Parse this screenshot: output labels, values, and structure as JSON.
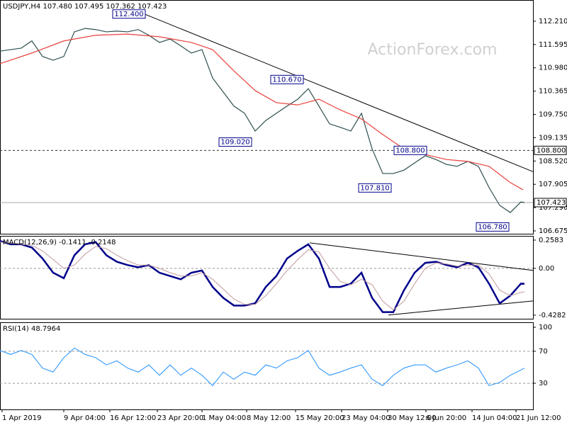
{
  "watermark": "ActionForex.com",
  "chart_data": [
    {
      "type": "line",
      "title": "USDJPY,H4  107.480 107.495 107.362 107.423",
      "x": [
        0,
        3,
        6,
        9,
        12,
        15,
        18,
        21,
        24,
        27,
        30,
        33,
        36,
        39,
        42,
        45,
        48,
        51,
        54,
        57,
        60,
        63,
        66,
        69,
        72,
        75,
        78,
        81,
        84,
        87,
        90,
        93,
        96,
        99,
        102,
        105,
        108,
        111,
        114,
        117,
        120,
        123,
        126,
        129,
        132,
        135,
        138,
        141,
        144,
        147,
        148
      ],
      "series": [
        {
          "name": "USDJPY",
          "color": "#2f4f4f",
          "values": [
            111.42,
            111.46,
            111.5,
            111.69,
            111.28,
            111.18,
            111.28,
            111.93,
            112.02,
            111.99,
            111.93,
            111.95,
            111.93,
            111.99,
            111.84,
            111.65,
            111.74,
            111.56,
            111.37,
            111.46,
            110.71,
            110.34,
            109.97,
            109.78,
            109.31,
            109.59,
            109.78,
            109.97,
            110.15,
            110.43,
            109.97,
            109.5,
            109.41,
            109.31,
            109.78,
            108.84,
            108.19,
            108.19,
            108.28,
            108.47,
            108.66,
            108.56,
            108.43,
            108.38,
            108.51,
            108.38,
            107.82,
            107.35,
            107.16,
            107.44,
            107.423
          ]
        },
        {
          "name": "MA",
          "color": "#e8413c",
          "x": [
            0,
            9,
            18,
            27,
            36,
            45,
            54,
            60,
            66,
            72,
            78,
            84,
            90,
            96,
            102,
            108,
            114,
            120,
            126,
            132,
            138,
            144,
            147.6
          ],
          "values": [
            111.09,
            111.37,
            111.69,
            111.84,
            111.87,
            111.8,
            111.65,
            111.46,
            110.9,
            110.38,
            110.06,
            110.0,
            110.15,
            109.87,
            109.63,
            109.22,
            108.84,
            108.69,
            108.56,
            108.51,
            108.38,
            107.95,
            107.76
          ]
        }
      ],
      "trendlines": [
        {
          "x": [
            41,
            150.4
          ],
          "y": [
            112.39,
            108.24
          ]
        }
      ],
      "annotations": [
        {
          "x": 41,
          "value": 112.4,
          "label": "112.400"
        },
        {
          "x": 85.6,
          "value": 110.67,
          "label": "110.670"
        },
        {
          "x": 71,
          "value": 109.02,
          "label": "109.020"
        },
        {
          "x": 120.4,
          "value": 108.8,
          "label": "108.800"
        },
        {
          "x": 110.4,
          "value": 107.81,
          "label": "107.810"
        },
        {
          "x": 143.6,
          "value": 106.78,
          "label": "106.780"
        }
      ],
      "hlines": [
        {
          "value": 108.8,
          "label": "108.800",
          "dashed": true
        },
        {
          "value": 107.423,
          "label": "107.423",
          "dashed": false
        }
      ],
      "xlim": [
        0,
        150.4
      ],
      "ylim": [
        106.6,
        112.77
      ],
      "yticks": [
        {
          "value": 112.21,
          "label": "112.210"
        },
        111.595,
        {
          "value": 110.98,
          "label": "110.980"
        },
        110.365,
        {
          "value": 109.75,
          "label": "109.750"
        },
        109.135,
        {
          "value": 108.52,
          "label": "108.520"
        },
        107.905,
        {
          "value": 107.29,
          "label": "107.290"
        },
        106.675
      ]
    },
    {
      "type": "line",
      "title": "MACD(12,26,9) -0.1411 -0.2148",
      "x": [
        0,
        3,
        6,
        9,
        12,
        15,
        18,
        21,
        24,
        27,
        30,
        33,
        36,
        39,
        42,
        45,
        48,
        51,
        54,
        57,
        60,
        63,
        66,
        69,
        72,
        75,
        78,
        81,
        84,
        87,
        90,
        93,
        96,
        99,
        102,
        105,
        108,
        111,
        114,
        117,
        120,
        123,
        126,
        129,
        132,
        135,
        138,
        141,
        144,
        147,
        148
      ],
      "series": [
        {
          "name": "MACD",
          "color": "#00008b",
          "width": 2.5,
          "values": [
            0.25,
            0.22,
            0.22,
            0.19,
            0.09,
            -0.04,
            -0.09,
            0.12,
            0.22,
            0.24,
            0.12,
            0.06,
            0.03,
            0.01,
            0.03,
            -0.04,
            -0.07,
            -0.1,
            -0.04,
            -0.02,
            -0.17,
            -0.27,
            -0.34,
            -0.34,
            -0.32,
            -0.17,
            -0.07,
            0.09,
            0.16,
            0.22,
            0.09,
            -0.17,
            -0.17,
            -0.14,
            -0.04,
            -0.27,
            -0.4,
            -0.4,
            -0.2,
            -0.04,
            0.05,
            0.06,
            0.03,
            0.01,
            0.05,
            0.01,
            -0.14,
            -0.32,
            -0.25,
            -0.14,
            -0.1411
          ]
        },
        {
          "name": "Signal",
          "color": "#c09a9a",
          "width": 1,
          "values": [
            0.24,
            0.23,
            0.22,
            0.21,
            0.16,
            0.08,
            0.0,
            0.03,
            0.13,
            0.2,
            0.18,
            0.12,
            0.07,
            0.03,
            0.03,
            0.0,
            -0.04,
            -0.07,
            -0.07,
            -0.04,
            -0.1,
            -0.19,
            -0.28,
            -0.33,
            -0.33,
            -0.25,
            -0.14,
            -0.02,
            0.08,
            0.17,
            0.15,
            0.0,
            -0.12,
            -0.15,
            -0.1,
            -0.15,
            -0.3,
            -0.38,
            -0.3,
            -0.14,
            0.0,
            0.05,
            0.04,
            0.02,
            0.03,
            0.03,
            -0.05,
            -0.2,
            -0.25,
            -0.22,
            -0.2148
          ]
        }
      ],
      "trendlines": [
        {
          "x": [
            87.4,
            150.4
          ],
          "y": [
            0.233,
            -0.019
          ]
        },
        {
          "x": [
            109.6,
            150.4
          ],
          "y": [
            -0.427,
            -0.298
          ]
        }
      ],
      "levels": [
        0
      ],
      "xlim": [
        0,
        150.4
      ],
      "ylim": [
        -0.461,
        0.297
      ],
      "yticks": [
        0.2583,
        {
          "value": 0,
          "label": "0.00"
        },
        -0.4282
      ]
    },
    {
      "type": "line",
      "title": "RSI(14) 48.7964",
      "x": [
        0,
        3,
        6,
        9,
        12,
        15,
        18,
        21,
        24,
        27,
        30,
        33,
        36,
        39,
        42,
        45,
        48,
        51,
        54,
        57,
        60,
        63,
        66,
        69,
        72,
        75,
        78,
        81,
        84,
        87,
        90,
        93,
        96,
        99,
        102,
        105,
        108,
        111,
        114,
        117,
        120,
        123,
        126,
        129,
        132,
        135,
        138,
        141,
        144,
        148
      ],
      "series": [
        {
          "name": "RSI",
          "color": "#1e90ff",
          "width": 1,
          "values": [
            71,
            66,
            71,
            66,
            49,
            44,
            62,
            74,
            66,
            62,
            53,
            58,
            49,
            44,
            53,
            40,
            53,
            40,
            49,
            40,
            27,
            44,
            35,
            44,
            40,
            53,
            49,
            58,
            62,
            71,
            49,
            40,
            44,
            49,
            53,
            35,
            27,
            40,
            49,
            53,
            53,
            44,
            49,
            53,
            58,
            49,
            27,
            31,
            40,
            48.7964
          ]
        }
      ],
      "levels": [
        70,
        30
      ],
      "xlim": [
        0,
        150.4
      ],
      "ylim": [
        -2.7,
        106.2
      ],
      "yticks": [
        100,
        70,
        30
      ],
      "xticks": [
        {
          "value": 0.6,
          "label": "1 Apr 2019"
        },
        {
          "value": 18,
          "label": "9 Apr 04:00"
        },
        {
          "value": 31,
          "label": "16 Apr 12:00"
        },
        {
          "value": 44.4,
          "label": "23 Apr 20:00"
        },
        {
          "value": 57,
          "label": "1 May 04:00"
        },
        {
          "value": 69.6,
          "label": "8 May 12:00"
        },
        {
          "value": 83.4,
          "label": "15 May 20:00"
        },
        {
          "value": 96.4,
          "label": "23 May 04:00"
        },
        {
          "value": 109.4,
          "label": "30 May 12:00"
        },
        {
          "value": 120.2,
          "label": "6 Jun 20:00"
        },
        {
          "value": 133.2,
          "label": "14 Jun 04:00"
        },
        {
          "value": 145.6,
          "label": "21 Jun 12:00"
        }
      ]
    }
  ]
}
